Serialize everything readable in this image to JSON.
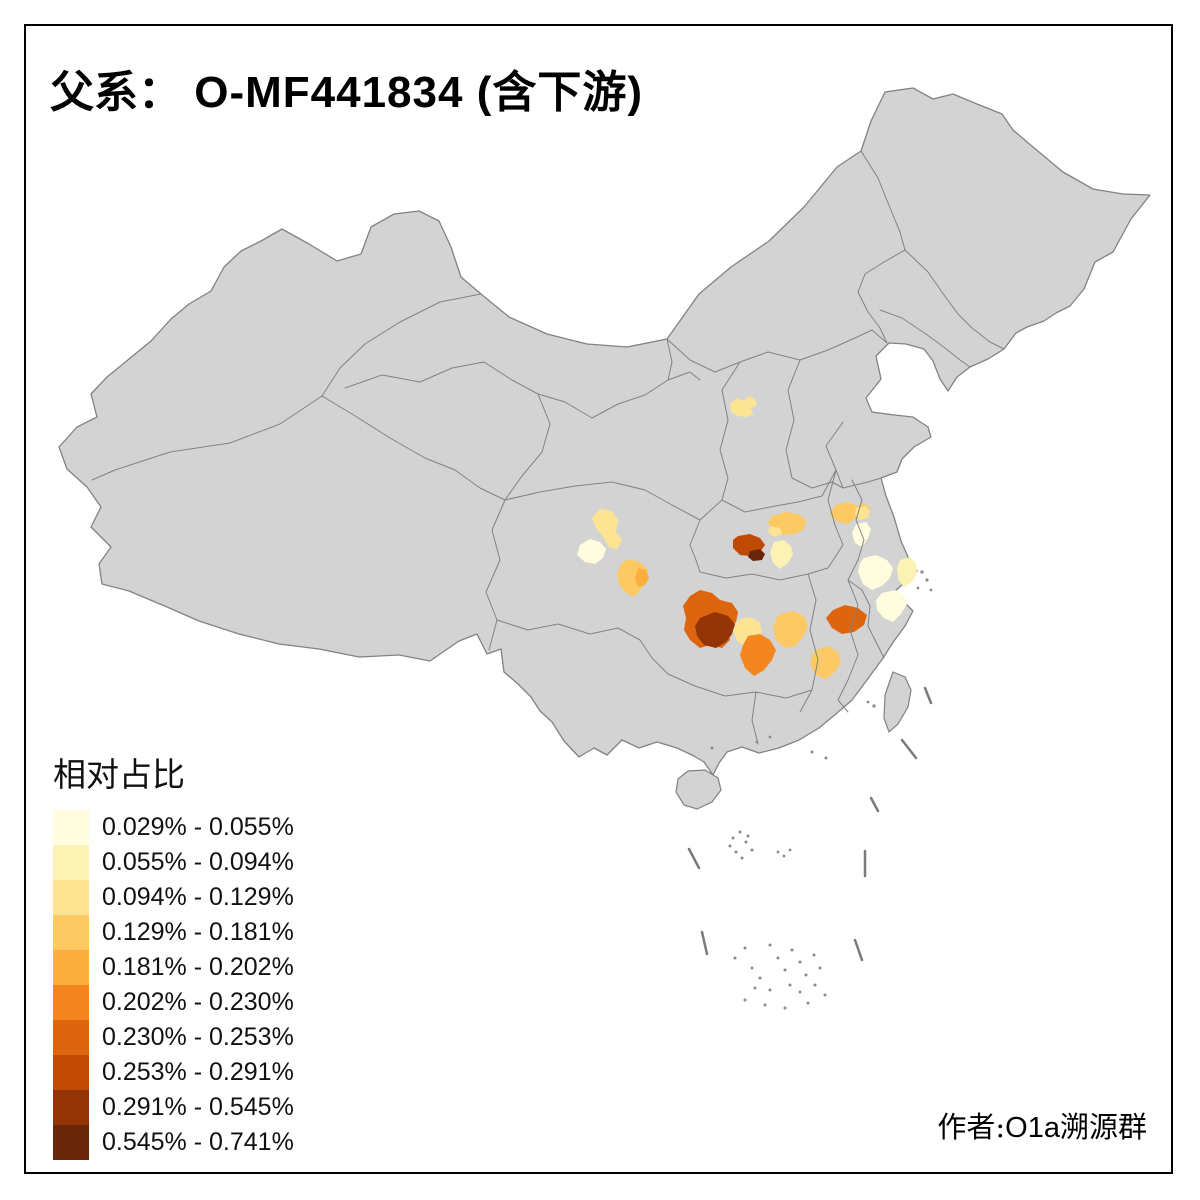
{
  "title": {
    "prefix": "父系：",
    "main": "O-MF441834 (含下游)"
  },
  "author": {
    "prefix": "作者:",
    "latin": "O1a",
    "suffix": "溯源群"
  },
  "legend": {
    "title": "相对占比",
    "items": [
      {
        "label": "0.029% - 0.055%",
        "color": "#FFFDDD"
      },
      {
        "label": "0.055% - 0.094%",
        "color": "#FBF2B4"
      },
      {
        "label": "0.094% - 0.129%",
        "color": "#FCE492"
      },
      {
        "label": "0.129% - 0.181%",
        "color": "#FDC963"
      },
      {
        "label": "0.181% - 0.202%",
        "color": "#FCAE3F"
      },
      {
        "label": "0.202% - 0.230%",
        "color": "#F4861F"
      },
      {
        "label": "0.230% - 0.253%",
        "color": "#DD650D"
      },
      {
        "label": "0.253% - 0.291%",
        "color": "#C04A03"
      },
      {
        "label": "0.291% - 0.545%",
        "color": "#933406"
      },
      {
        "label": "0.545% - 0.741%",
        "color": "#672607"
      }
    ]
  },
  "map": {
    "land_color": "#D3D3D3",
    "border_color": "#828282",
    "sea_color": "#FFFFFF"
  },
  "chart_data": {
    "type": "choropleth",
    "area": "China (province base map, prefecture-level highlighted regions)",
    "title": "父系： O-MF441834 (含下游)",
    "legend_title": "相对占比",
    "legend_position": "bottom-left",
    "bins": [
      "0.029% - 0.055%",
      "0.055% - 0.094%",
      "0.094% - 0.129%",
      "0.129% - 0.181%",
      "0.181% - 0.202%",
      "0.202% - 0.230%",
      "0.230% - 0.253%",
      "0.253% - 0.291%",
      "0.291% - 0.545%",
      "0.545% - 0.741%"
    ],
    "bin_colors": [
      "#FFFDDD",
      "#FBF2B4",
      "#FCE492",
      "#FDC963",
      "#FCAE3F",
      "#F4861F",
      "#DD650D",
      "#C04A03",
      "#933406",
      "#672607"
    ],
    "no_data_color": "#D3D3D3",
    "regions": [
      {
        "name": "shanxi-central",
        "bin": 3
      },
      {
        "name": "sichuan-north",
        "bin": 3
      },
      {
        "name": "sichuan-west",
        "bin": 1
      },
      {
        "name": "chengdu-outer",
        "bin": 4
      },
      {
        "name": "chengdu-inner",
        "bin": 5
      },
      {
        "name": "hubei-west",
        "bin": 8
      },
      {
        "name": "hubei-dark-spot",
        "bin": 10
      },
      {
        "name": "hubei-east-pale",
        "bin": 2
      },
      {
        "name": "henan-south",
        "bin": 4
      },
      {
        "name": "henan-south-west",
        "bin": 3
      },
      {
        "name": "anhui-north",
        "bin": 4
      },
      {
        "name": "anhui-north-east",
        "bin": 3
      },
      {
        "name": "anhui-central-cream",
        "bin": 1
      },
      {
        "name": "jiangsu-south-cream",
        "bin": 1
      },
      {
        "name": "shanghai-area-pale",
        "bin": 2
      },
      {
        "name": "zhejiang-north-cream",
        "bin": 1
      },
      {
        "name": "guizhou-outer-orange",
        "bin": 7
      },
      {
        "name": "guizhou-dark-brown",
        "bin": 9
      },
      {
        "name": "hunan-central-pale",
        "bin": 3
      },
      {
        "name": "hunan-south-orange",
        "bin": 6
      },
      {
        "name": "hunan-east-light",
        "bin": 4
      },
      {
        "name": "jiangxi-north-orange",
        "bin": 7
      },
      {
        "name": "fujian-west-light",
        "bin": 4
      }
    ]
  }
}
